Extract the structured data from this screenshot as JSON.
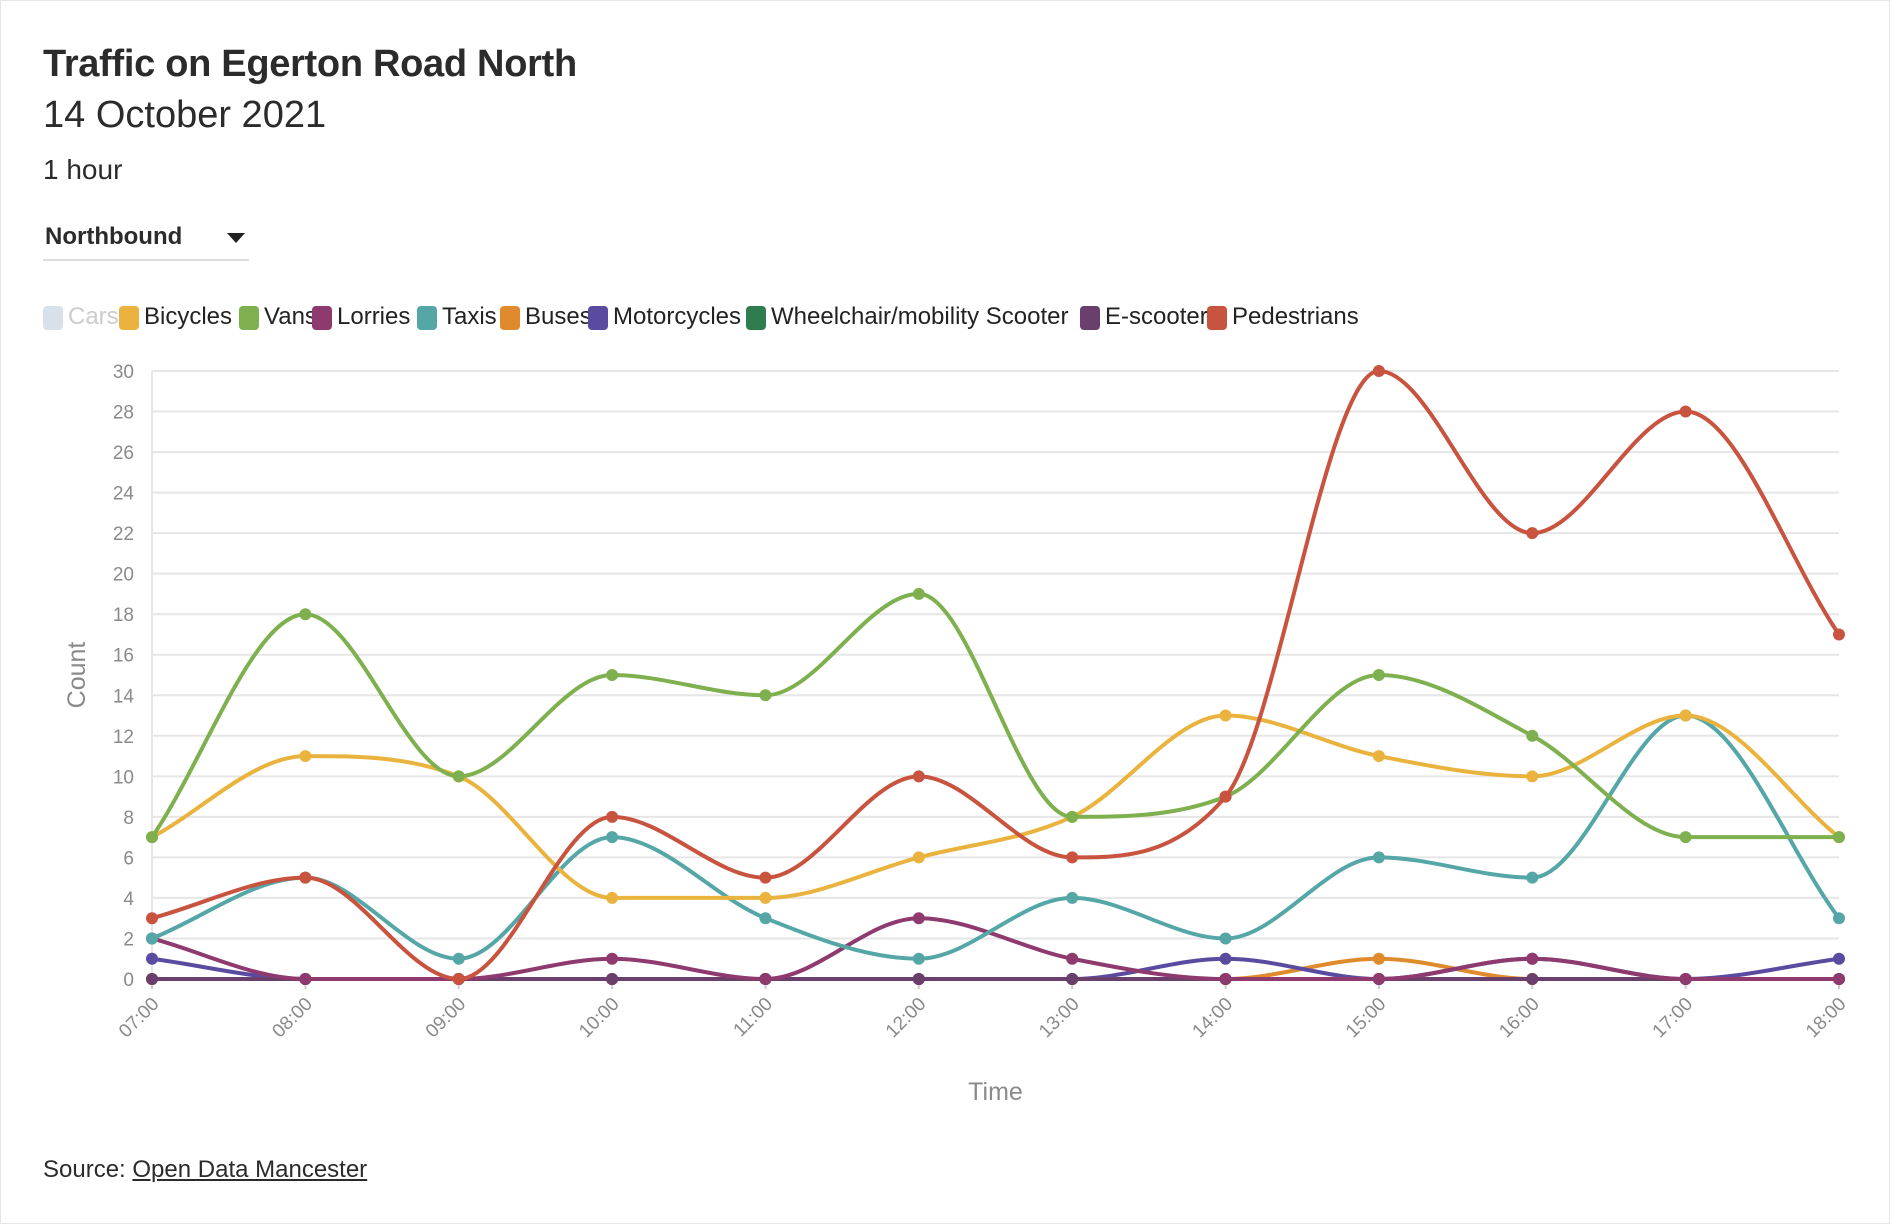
{
  "title": "Traffic on Egerton Road North",
  "subtitle": "14 October 2021",
  "interval": "1 hour",
  "direction_dropdown": {
    "selected": "Northbound"
  },
  "legend": [
    {
      "name": "Cars",
      "color": "#d8e1ea",
      "active": false
    },
    {
      "name": "Bicycles",
      "color": "#e9b33d",
      "active": true
    },
    {
      "name": "Vans",
      "color": "#7fb04f",
      "active": true
    },
    {
      "name": "Lorries",
      "color": "#8e3a6e",
      "active": true
    },
    {
      "name": "Taxis",
      "color": "#55a7a7",
      "active": true
    },
    {
      "name": "Buses",
      "color": "#e08a2e",
      "active": true
    },
    {
      "name": "Motorcycles",
      "color": "#5a4ba0",
      "active": true
    },
    {
      "name": "Wheelchair/mobility Scooter",
      "color": "#2f7d4f",
      "active": true
    },
    {
      "name": "E-scooter",
      "color": "#6b3f6b",
      "active": true
    },
    {
      "name": "Pedestrians",
      "color": "#c8533f",
      "active": true
    }
  ],
  "source": {
    "prefix": "Source:",
    "link_text": "Open Data Mancester"
  },
  "chart_data": {
    "type": "line",
    "xlabel": "Time",
    "ylabel": "Count",
    "ylim": [
      0,
      30
    ],
    "yticks": [
      0,
      2,
      4,
      6,
      8,
      10,
      12,
      14,
      16,
      18,
      20,
      22,
      24,
      26,
      28,
      30
    ],
    "categories": [
      "07:00",
      "08:00",
      "09:00",
      "10:00",
      "11:00",
      "12:00",
      "13:00",
      "14:00",
      "15:00",
      "16:00",
      "17:00",
      "18:00"
    ],
    "grid": true,
    "legend_position": "top-left",
    "smooth": true,
    "series": [
      {
        "name": "Wheelchair/mobility Scooter",
        "color": "#2f7d4f",
        "values": [
          0,
          0,
          0,
          0,
          0,
          0,
          0,
          0,
          0,
          0,
          0,
          0
        ]
      },
      {
        "name": "Buses",
        "color": "#e08a2e",
        "values": [
          0,
          0,
          0,
          0,
          0,
          0,
          0,
          0,
          1,
          0,
          0,
          0
        ]
      },
      {
        "name": "Motorcycles",
        "color": "#5a4ba0",
        "values": [
          1,
          0,
          0,
          0,
          0,
          0,
          0,
          1,
          0,
          1,
          0,
          1
        ]
      },
      {
        "name": "E-scooter",
        "color": "#6b3f6b",
        "values": [
          0,
          0,
          0,
          0,
          0,
          0,
          0,
          0,
          0,
          0,
          0,
          0
        ]
      },
      {
        "name": "Lorries",
        "color": "#8e3a6e",
        "values": [
          2,
          0,
          0,
          1,
          0,
          3,
          1,
          0,
          0,
          1,
          0,
          0
        ]
      },
      {
        "name": "Taxis",
        "color": "#55a7a7",
        "values": [
          2,
          5,
          1,
          7,
          3,
          1,
          4,
          2,
          6,
          5,
          13,
          3
        ]
      },
      {
        "name": "Bicycles",
        "color": "#e9b33d",
        "values": [
          7,
          11,
          10,
          4,
          4,
          6,
          8,
          13,
          11,
          10,
          13,
          7
        ]
      },
      {
        "name": "Vans",
        "color": "#7fb04f",
        "values": [
          7,
          18,
          10,
          15,
          14,
          19,
          8,
          9,
          15,
          12,
          7,
          7
        ]
      },
      {
        "name": "Pedestrians",
        "color": "#c8533f",
        "values": [
          3,
          5,
          0,
          8,
          5,
          10,
          6,
          9,
          30,
          22,
          28,
          17
        ]
      }
    ]
  }
}
